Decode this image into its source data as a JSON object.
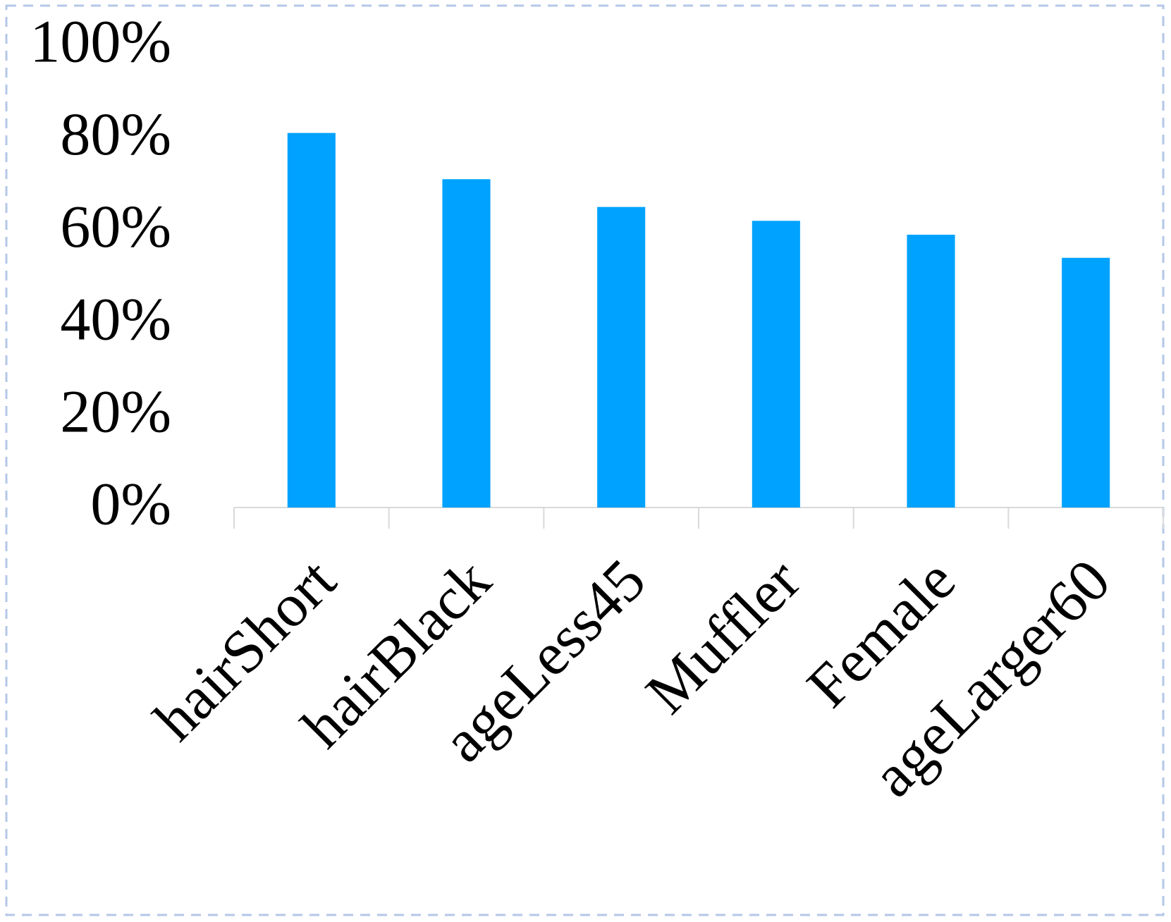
{
  "chart_data": {
    "type": "bar",
    "categories": [
      "hairShort",
      "hairBlack",
      "ageLess45",
      "Muffler",
      "Female",
      "ageLarger60"
    ],
    "values": [
      81,
      71,
      65,
      62,
      59,
      54
    ],
    "color": "#00a2ff",
    "ylim": [
      0,
      100
    ],
    "yticks": [
      {
        "value": 0,
        "label": "0%"
      },
      {
        "value": 20,
        "label": "20%"
      },
      {
        "value": 40,
        "label": "40%"
      },
      {
        "value": 60,
        "label": "60%"
      },
      {
        "value": 80,
        "label": "80%"
      },
      {
        "value": 100,
        "label": "100%"
      }
    ],
    "grid": false
  }
}
